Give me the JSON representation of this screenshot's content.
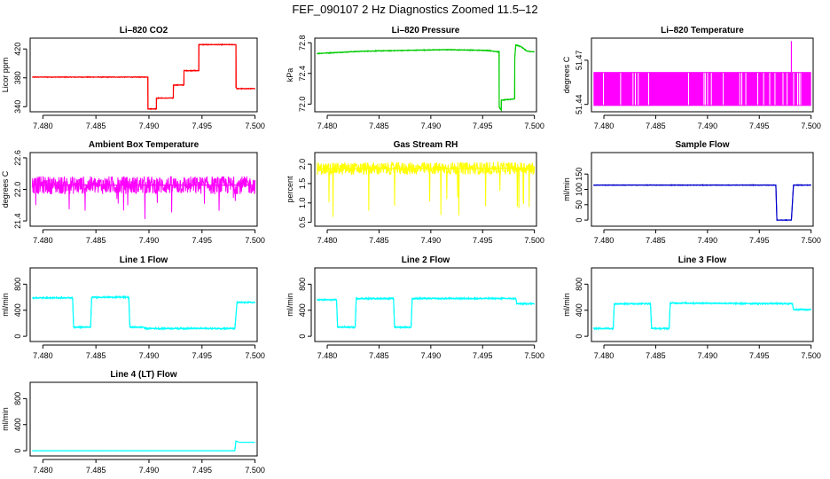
{
  "title": "FEF_090107  2 Hz Diagnostics Zoomed 11.5–12",
  "chart_data": [
    {
      "type": "line",
      "title": "Li–820 CO2",
      "ylabel": "Licor ppm",
      "color": "#ff0000",
      "xlim": [
        7.4788,
        7.5002
      ],
      "ylim": [
        333,
        435
      ],
      "xticks": [
        7.48,
        7.485,
        7.49,
        7.495,
        7.5
      ],
      "xtick_labels": [
        "7.480",
        "7.485",
        "7.490",
        "7.495",
        "7.500"
      ],
      "yticks": [
        340,
        380,
        420
      ],
      "ytick_labels": [
        "340",
        "380",
        "420"
      ],
      "noise": 0.6,
      "x": [
        7.479,
        7.4899,
        7.4899,
        7.49,
        7.4907,
        7.4907,
        7.4914,
        7.4914,
        7.4923,
        7.4923,
        7.4933,
        7.4933,
        7.4947,
        7.4947,
        7.4949,
        7.4949,
        7.4982,
        7.4982,
        7.4983,
        7.5
      ],
      "y": [
        381,
        381,
        337,
        337,
        337,
        352,
        352,
        352,
        352,
        370,
        370,
        390,
        390,
        426,
        426,
        426,
        426,
        367,
        365,
        365
      ]
    },
    {
      "type": "line",
      "title": "Li–820 Pressure",
      "ylabel": "kPa",
      "color": "#00cc00",
      "xlim": [
        7.4788,
        7.5002
      ],
      "ylim": [
        71.9,
        72.86
      ],
      "xticks": [
        7.48,
        7.485,
        7.49,
        7.495,
        7.5
      ],
      "xtick_labels": [
        "7.480",
        "7.485",
        "7.490",
        "7.495",
        "7.500"
      ],
      "yticks": [
        72.0,
        72.4,
        72.8
      ],
      "ytick_labels": [
        "72.0",
        "72.4",
        "72.8"
      ],
      "noise": 0.006,
      "x": [
        7.479,
        7.4835,
        7.4875,
        7.4915,
        7.4955,
        7.4966,
        7.4966,
        7.4968,
        7.4968,
        7.4975,
        7.4981,
        7.4981,
        7.4982,
        7.4987,
        7.4993,
        7.5
      ],
      "y": [
        72.66,
        72.69,
        72.7,
        72.71,
        72.7,
        72.68,
        71.96,
        71.92,
        72.05,
        72.06,
        72.07,
        72.6,
        72.77,
        72.75,
        72.69,
        72.68
      ]
    },
    {
      "type": "line",
      "title": "Li–820 Temperature",
      "ylabel": "degrees C",
      "color": "#ff00ff",
      "xlim": [
        7.4788,
        7.5002
      ],
      "ylim": [
        51.435,
        51.485
      ],
      "xticks": [
        7.48,
        7.485,
        7.49,
        7.495,
        7.5
      ],
      "xtick_labels": [
        "7.480",
        "7.485",
        "7.490",
        "7.495",
        "7.500"
      ],
      "yticks": [
        51.44,
        51.47
      ],
      "ytick_labels": [
        "51.44",
        "51.47"
      ],
      "band": [
        51.439,
        51.462
      ],
      "spike": [
        7.4981,
        51.483
      ],
      "noise": 0
    },
    {
      "type": "line",
      "title": "Ambient Box Temperature",
      "ylabel": "degrees C",
      "color": "#ff00ff",
      "xlim": [
        7.4788,
        7.5002
      ],
      "ylim": [
        21.3,
        22.7
      ],
      "xticks": [
        7.48,
        7.485,
        7.49,
        7.495,
        7.5
      ],
      "xtick_labels": [
        "7.480",
        "7.485",
        "7.490",
        "7.495",
        "7.500"
      ],
      "yticks": [
        21.4,
        22.0,
        22.6
      ],
      "ytick_labels": [
        "21.4",
        "22.0",
        "22.6"
      ],
      "noise": 0.17,
      "x": [
        7.479,
        7.5
      ],
      "y": [
        22.08,
        22.08
      ]
    },
    {
      "type": "line",
      "title": "Gas Stream RH",
      "ylabel": "percent",
      "color": "#ffff00",
      "xlim": [
        7.4788,
        7.5002
      ],
      "ylim": [
        0.4,
        2.3
      ],
      "xticks": [
        7.48,
        7.485,
        7.49,
        7.495,
        7.5
      ],
      "xtick_labels": [
        "7.480",
        "7.485",
        "7.490",
        "7.495",
        "7.500"
      ],
      "yticks": [
        0.5,
        1.0,
        1.5,
        2.0
      ],
      "ytick_labels": [
        "0.5",
        "1.0",
        "1.5",
        "2.0"
      ],
      "noise": 0.16,
      "x": [
        7.479,
        7.5
      ],
      "y": [
        1.88,
        1.9
      ]
    },
    {
      "type": "line",
      "title": "Sample Flow",
      "ylabel": "ml/min",
      "color": "#0000cc",
      "xlim": [
        7.4788,
        7.5002
      ],
      "ylim": [
        -20,
        220
      ],
      "xticks": [
        7.48,
        7.485,
        7.49,
        7.495,
        7.5
      ],
      "xtick_labels": [
        "7.480",
        "7.485",
        "7.490",
        "7.495",
        "7.500"
      ],
      "yticks": [
        0,
        50,
        100,
        150
      ],
      "ytick_labels": [
        "0",
        "50",
        "100",
        "150"
      ],
      "noise": 1.2,
      "x": [
        7.479,
        7.4935,
        7.4966,
        7.4967,
        7.4981,
        7.4983,
        7.5
      ],
      "y": [
        114,
        114,
        114,
        0,
        0,
        114,
        114
      ]
    },
    {
      "type": "line",
      "title": "Line 1 Flow",
      "ylabel": "ml/min",
      "color": "#00ffff",
      "xlim": [
        7.4788,
        7.5002
      ],
      "ylim": [
        -80,
        1050
      ],
      "xticks": [
        7.48,
        7.485,
        7.49,
        7.495,
        7.5
      ],
      "xtick_labels": [
        "7.480",
        "7.485",
        "7.490",
        "7.495",
        "7.500"
      ],
      "yticks": [
        0,
        400,
        800
      ],
      "ytick_labels": [
        "0",
        "400",
        "800"
      ],
      "noise": 12,
      "x": [
        7.479,
        7.4828,
        7.4829,
        7.4845,
        7.4846,
        7.4881,
        7.4882,
        7.4895,
        7.4896,
        7.4981,
        7.4983,
        7.5
      ],
      "y": [
        590,
        590,
        140,
        140,
        600,
        600,
        140,
        140,
        120,
        120,
        520,
        520
      ]
    },
    {
      "type": "line",
      "title": "Line 2 Flow",
      "ylabel": "ml/min",
      "color": "#00ffff",
      "xlim": [
        7.4788,
        7.5002
      ],
      "ylim": [
        -80,
        1050
      ],
      "xticks": [
        7.48,
        7.485,
        7.49,
        7.495,
        7.5
      ],
      "xtick_labels": [
        "7.480",
        "7.485",
        "7.490",
        "7.495",
        "7.500"
      ],
      "yticks": [
        0,
        400,
        800
      ],
      "ytick_labels": [
        "0",
        "400",
        "800"
      ],
      "noise": 12,
      "x": [
        7.479,
        7.4809,
        7.481,
        7.4827,
        7.4828,
        7.4864,
        7.4865,
        7.4881,
        7.4882,
        7.4982,
        7.4983,
        7.5
      ],
      "y": [
        560,
        560,
        140,
        140,
        580,
        580,
        140,
        140,
        580,
        580,
        500,
        500
      ]
    },
    {
      "type": "line",
      "title": "Line 3 Flow",
      "ylabel": "ml/min",
      "color": "#00ffff",
      "xlim": [
        7.4788,
        7.5002
      ],
      "ylim": [
        -80,
        1050
      ],
      "xticks": [
        7.48,
        7.485,
        7.49,
        7.495,
        7.5
      ],
      "xtick_labels": [
        "7.480",
        "7.485",
        "7.490",
        "7.495",
        "7.500"
      ],
      "yticks": [
        0,
        400,
        800
      ],
      "ytick_labels": [
        "0",
        "400",
        "800"
      ],
      "noise": 12,
      "x": [
        7.479,
        7.4809,
        7.481,
        7.4845,
        7.4846,
        7.4863,
        7.4864,
        7.4982,
        7.4983,
        7.5
      ],
      "y": [
        120,
        120,
        500,
        500,
        120,
        120,
        510,
        500,
        410,
        410
      ]
    },
    {
      "type": "line",
      "title": "Line 4 (LT) Flow",
      "ylabel": "ml/min",
      "color": "#00ffff",
      "xlim": [
        7.4788,
        7.5002
      ],
      "ylim": [
        -80,
        1050
      ],
      "xticks": [
        7.48,
        7.485,
        7.49,
        7.495,
        7.5
      ],
      "xtick_labels": [
        "7.480",
        "7.485",
        "7.490",
        "7.495",
        "7.500"
      ],
      "yticks": [
        0,
        400,
        800
      ],
      "ytick_labels": [
        "0",
        "400",
        "800"
      ],
      "noise": 1.5,
      "x": [
        7.479,
        7.4981,
        7.4982,
        7.4985,
        7.5
      ],
      "y": [
        0,
        0,
        150,
        130,
        130
      ]
    }
  ]
}
